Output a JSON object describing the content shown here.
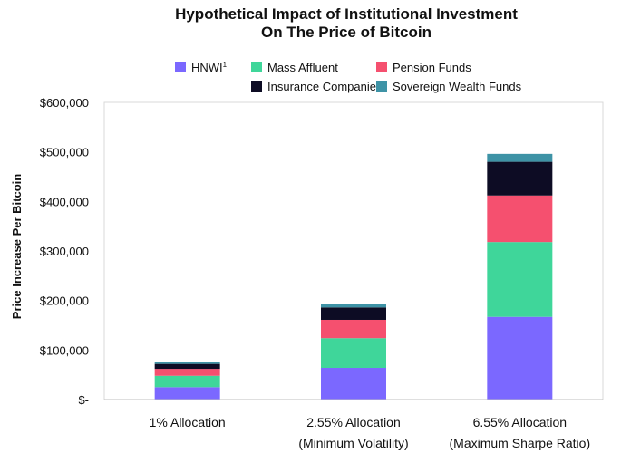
{
  "chart_data": {
    "type": "bar",
    "stacked": true,
    "title": "Hypothetical Impact of Institutional Investment",
    "subtitle": "On The Price of Bitcoin",
    "xlabel": "",
    "ylabel": "Price Increase Per Bitcoin",
    "ylim": [
      0,
      600000
    ],
    "yticks": [
      0,
      100000,
      200000,
      300000,
      400000,
      500000,
      600000
    ],
    "ytick_labels": [
      "$-",
      "$100,000",
      "$200,000",
      "$300,000",
      "$400,000",
      "$500,000",
      "$600,000"
    ],
    "categories": [
      [
        "1% Allocation"
      ],
      [
        "2.55% Allocation",
        "(Minimum Volatility)"
      ],
      [
        "6.55% Allocation",
        "(Maximum Sharpe Ratio)"
      ]
    ],
    "legend_position": "top",
    "grid": false,
    "series": [
      {
        "name": "HNWI",
        "name_superscript": "1",
        "color": "#7b68ff",
        "values": [
          25000,
          64000,
          167000
        ]
      },
      {
        "name": "Mass Affluent",
        "color": "#3fd69a",
        "values": [
          23000,
          60000,
          151000
        ]
      },
      {
        "name": "Pension Funds",
        "color": "#f5506f",
        "values": [
          14000,
          37000,
          94000
        ]
      },
      {
        "name": "Insurance Companies",
        "color": "#0d0c24",
        "values": [
          10000,
          25000,
          68000
        ]
      },
      {
        "name": "Sovereign Wealth Funds",
        "color": "#3e93a6",
        "values": [
          3000,
          7000,
          16000
        ]
      }
    ]
  }
}
